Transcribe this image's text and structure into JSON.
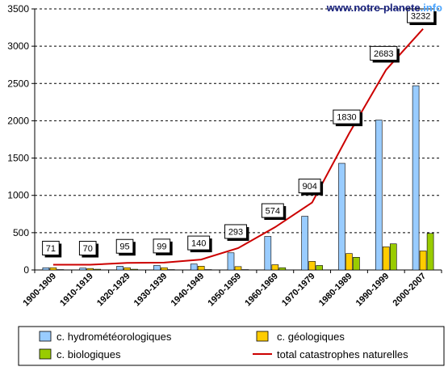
{
  "watermark": {
    "main": "www.notre-planete",
    "tld": ".info",
    "main_color": "#1a237e",
    "tld_color": "#4da6ff"
  },
  "chart_data": {
    "type": "bar",
    "categories": [
      "1900-1909",
      "1910-1919",
      "1920-1929",
      "1930-1939",
      "1940-1949",
      "1950-1959",
      "1960-1969",
      "1970-1979",
      "1980-1989",
      "1990-1999",
      "2000-2007"
    ],
    "ylim": [
      0,
      3500
    ],
    "yticks": [
      0,
      500,
      1000,
      1500,
      2000,
      2500,
      3000,
      3500
    ],
    "grid": true,
    "legend_position": "bottom",
    "series": [
      {
        "name": "c. hydrométéorologiques",
        "kind": "bar",
        "color": "#99ccff",
        "values": [
          30,
          25,
          50,
          60,
          80,
          230,
          450,
          720,
          1430,
          2010,
          2470
        ]
      },
      {
        "name": "c. géologiques",
        "kind": "bar",
        "color": "#ffcc00",
        "values": [
          30,
          20,
          30,
          30,
          50,
          45,
          70,
          115,
          220,
          310,
          255
        ]
      },
      {
        "name": "c. biologiques",
        "kind": "bar",
        "color": "#99cc00",
        "values": [
          5,
          10,
          10,
          5,
          5,
          5,
          30,
          60,
          170,
          350,
          490
        ]
      },
      {
        "name": "total catastrophes naturelles",
        "kind": "line",
        "color": "#cc0000",
        "values": [
          71,
          70,
          95,
          99,
          140,
          293,
          574,
          904,
          1830,
          2683,
          3232
        ],
        "labels": [
          "71",
          "70",
          "95",
          "99",
          "140",
          "293",
          "574",
          "904",
          "1830",
          "2683",
          "3232"
        ]
      }
    ]
  }
}
